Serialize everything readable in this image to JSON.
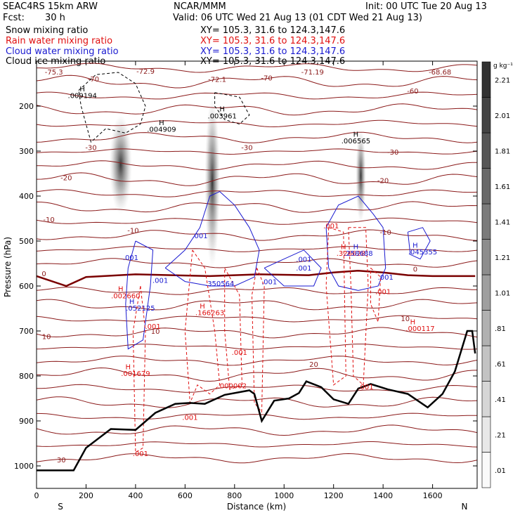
{
  "header": {
    "model": "SEAC4RS 15km ARW",
    "center": "NCAR/MMM",
    "init": "Init: 00 UTC Tue 20 Aug 13",
    "fcst_label": "Fcst:",
    "fcst_value": "30 h",
    "valid": "Valid: 06 UTC Wed 21 Aug 13 (01 CDT Wed 21 Aug 13)"
  },
  "fields": [
    {
      "name": "Snow mixing ratio",
      "xy": "XY=  105.3,  31.6  to  124.3,147.6",
      "color": "#000000"
    },
    {
      "name": "Rain water mixing ratio",
      "xy": "XY=  105.3,  31.6  to  124.3,147.6",
      "color": "#e01010"
    },
    {
      "name": "Cloud water mixing ratio",
      "xy": "XY=  105.3,  31.6  to  124.3,147.6",
      "color": "#1a1ad0"
    },
    {
      "name": "Cloud ice mixing ratio",
      "xy": "XY=  105.3,  31.6  to  124.3,147.6",
      "color": "#000000"
    }
  ],
  "chart_data": {
    "type": "cross-section",
    "xlabel": "Distance (km)",
    "ylabel": "Pressure (hPa)",
    "xlim": [
      0,
      1780
    ],
    "ylim": [
      1050,
      100
    ],
    "x_ticks": [
      0,
      200,
      400,
      600,
      800,
      1000,
      1200,
      1400,
      1600
    ],
    "y_ticks": [
      200,
      300,
      400,
      500,
      600,
      700,
      800,
      900,
      1000
    ],
    "direction_left": "S",
    "direction_right": "N",
    "colorbar": {
      "unit": "g kg⁻¹",
      "labels": [
        ".01",
        ".21",
        ".41",
        ".61",
        ".81",
        "1.01",
        "1.21",
        "1.41",
        "1.61",
        "1.81",
        "2.01",
        "2.21"
      ]
    },
    "terrain": [
      [
        0,
        1010
      ],
      [
        150,
        1010
      ],
      [
        200,
        960
      ],
      [
        300,
        918
      ],
      [
        400,
        920
      ],
      [
        480,
        882
      ],
      [
        560,
        862
      ],
      [
        620,
        860
      ],
      [
        680,
        862
      ],
      [
        760,
        842
      ],
      [
        860,
        832
      ],
      [
        880,
        840
      ],
      [
        910,
        900
      ],
      [
        960,
        855
      ],
      [
        1020,
        850
      ],
      [
        1060,
        838
      ],
      [
        1090,
        812
      ],
      [
        1150,
        825
      ],
      [
        1200,
        852
      ],
      [
        1260,
        862
      ],
      [
        1300,
        828
      ],
      [
        1350,
        818
      ],
      [
        1420,
        830
      ],
      [
        1500,
        840
      ],
      [
        1580,
        870
      ],
      [
        1640,
        840
      ],
      [
        1690,
        790
      ],
      [
        1740,
        700
      ],
      [
        1760,
        700
      ],
      [
        1772,
        750
      ]
    ],
    "freezing_level": [
      [
        0,
        578
      ],
      [
        120,
        600
      ],
      [
        200,
        580
      ],
      [
        400,
        574
      ],
      [
        700,
        578
      ],
      [
        900,
        574
      ],
      [
        1100,
        576
      ],
      [
        1200,
        570
      ],
      [
        1300,
        566
      ],
      [
        1400,
        570
      ],
      [
        1500,
        576
      ],
      [
        1600,
        578
      ],
      [
        1772,
        578
      ]
    ],
    "temperature_labels": [
      {
        "text": "-75.3",
        "x": 70,
        "p": 130
      },
      {
        "text": "-72.9",
        "x": 440,
        "p": 128
      },
      {
        "text": "-72.1",
        "x": 730,
        "p": 146
      },
      {
        "text": "-71.19",
        "x": 1115,
        "p": 130
      },
      {
        "text": "-68.68",
        "x": 1630,
        "p": 130
      },
      {
        "text": "-70",
        "x": 230,
        "p": 145
      },
      {
        "text": "-70",
        "x": 930,
        "p": 143
      },
      {
        "text": "-60",
        "x": 1520,
        "p": 172
      },
      {
        "text": "-30",
        "x": 220,
        "p": 298
      },
      {
        "text": "-30",
        "x": 850,
        "p": 298
      },
      {
        "text": "-30",
        "x": 1440,
        "p": 308
      },
      {
        "text": "-20",
        "x": 120,
        "p": 365
      },
      {
        "text": "-20",
        "x": 1400,
        "p": 371
      },
      {
        "text": "-10",
        "x": 50,
        "p": 458
      },
      {
        "text": "-10",
        "x": 390,
        "p": 482
      },
      {
        "text": "-10",
        "x": 1410,
        "p": 486
      },
      {
        "text": "0",
        "x": 30,
        "p": 578
      },
      {
        "text": "0",
        "x": 1530,
        "p": 568
      },
      {
        "text": "10",
        "x": 40,
        "p": 718
      },
      {
        "text": "10",
        "x": 480,
        "p": 706
      },
      {
        "text": "10",
        "x": 1490,
        "p": 678
      },
      {
        "text": "20",
        "x": 1120,
        "p": 780
      },
      {
        "text": "30",
        "x": 100,
        "p": 992
      }
    ],
    "snow_labels": [
      {
        "text": "H",
        "x": 185,
        "p": 167
      },
      {
        "text": ".009194",
        "x": 185,
        "p": 182
      },
      {
        "text": "H",
        "x": 505,
        "p": 242
      },
      {
        "text": ".004909",
        "x": 505,
        "p": 257
      },
      {
        "text": "H",
        "x": 750,
        "p": 212
      },
      {
        "text": ".003961",
        "x": 750,
        "p": 227
      },
      {
        "text": "H",
        "x": 1290,
        "p": 268
      },
      {
        "text": ".006565",
        "x": 1290,
        "p": 283
      }
    ],
    "rain_labels": [
      {
        "text": "H",
        "x": 340,
        "p": 612
      },
      {
        "text": ".002660",
        "x": 360,
        "p": 627
      },
      {
        "text": "H",
        "x": 670,
        "p": 650
      },
      {
        "text": ".166263",
        "x": 700,
        "p": 665
      },
      {
        "text": ".001",
        "x": 470,
        "p": 695
      },
      {
        "text": ".001",
        "x": 820,
        "p": 753
      },
      {
        "text": ".000002",
        "x": 790,
        "p": 827
      },
      {
        "text": "H",
        "x": 370,
        "p": 785
      },
      {
        "text": ".001679",
        "x": 400,
        "p": 800
      },
      {
        "text": ".001",
        "x": 620,
        "p": 898
      },
      {
        "text": ".001",
        "x": 420,
        "p": 978
      },
      {
        "text": ".001",
        "x": 1190,
        "p": 472
      },
      {
        "text": "H",
        "x": 1240,
        "p": 518
      },
      {
        "text": ".326628",
        "x": 1270,
        "p": 533
      },
      {
        "text": ".001",
        "x": 1400,
        "p": 618
      },
      {
        "text": "H",
        "x": 1520,
        "p": 685
      },
      {
        "text": ".000117",
        "x": 1550,
        "p": 700
      },
      {
        "text": ".001",
        "x": 1330,
        "p": 830
      }
    ],
    "cloud_water_labels": [
      {
        "text": ".001",
        "x": 380,
        "p": 542
      },
      {
        "text": "H",
        "x": 385,
        "p": 640
      },
      {
        "text": ".052125",
        "x": 420,
        "p": 655
      },
      {
        "text": ".001",
        "x": 500,
        "p": 593
      },
      {
        "text": ".001",
        "x": 660,
        "p": 494
      },
      {
        "text": ".350564",
        "x": 740,
        "p": 600
      },
      {
        "text": ".001",
        "x": 940,
        "p": 596
      },
      {
        "text": ".001",
        "x": 1080,
        "p": 546
      },
      {
        "text": ".001",
        "x": 1080,
        "p": 566
      },
      {
        "text": "H",
        "x": 1290,
        "p": 518
      },
      {
        "text": ".258688",
        "x": 1300,
        "p": 533
      },
      {
        "text": ".001",
        "x": 1410,
        "p": 586
      },
      {
        "text": "H",
        "x": 1530,
        "p": 515
      },
      {
        "text": ".045355",
        "x": 1560,
        "p": 530
      }
    ],
    "ice_plumes": [
      {
        "x": 340,
        "ptop": 220,
        "pbot": 440,
        "width_km": 80
      },
      {
        "x": 710,
        "ptop": 180,
        "pbot": 560,
        "width_km": 50
      },
      {
        "x": 1310,
        "ptop": 250,
        "pbot": 460,
        "width_km": 30
      }
    ]
  }
}
